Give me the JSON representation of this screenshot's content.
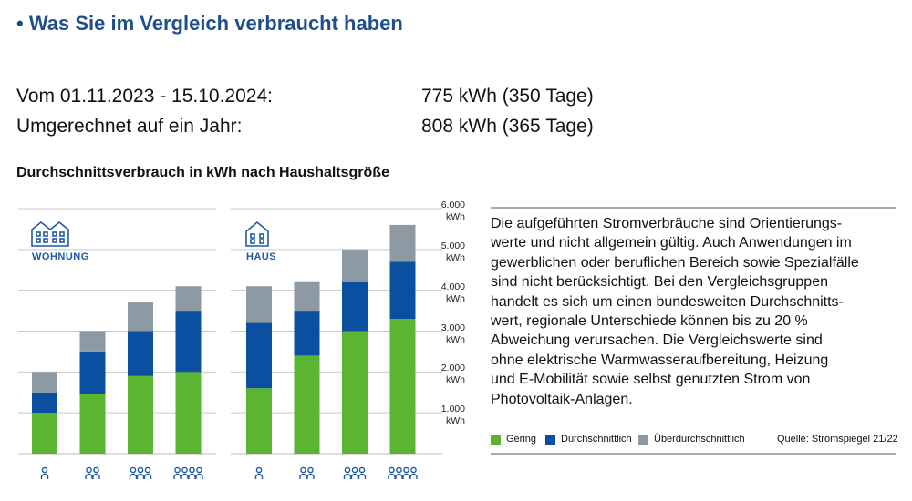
{
  "header": {
    "title": "Was Sie im Vergleich verbraucht haben"
  },
  "summary": {
    "rows": [
      [
        "Vom 01.11.2023 - 15.10.2024:",
        "775 kWh (350 Tage)"
      ],
      [
        "Umgerechnet auf ein Jahr:",
        "808 kWh (365 Tage)"
      ]
    ]
  },
  "section_title": "Durchschnittsverbrauch in kWh nach Haushaltsgröße",
  "chart_data": {
    "type": "bar",
    "stacked": true,
    "panels": [
      "WOHNUNG",
      "HAUS"
    ],
    "categories": [
      null,
      null,
      null,
      null,
      null,
      null,
      null,
      null
    ],
    "series": [
      {
        "name": "Gering",
        "color": "#5bb432",
        "values": [
          1000,
          1450,
          1900,
          2000,
          1600,
          2400,
          3000,
          3300
        ]
      },
      {
        "name": "Durchschnittlich",
        "color": "#0b4fa1",
        "values": [
          500,
          1050,
          1100,
          1500,
          1600,
          1100,
          1200,
          1400
        ]
      },
      {
        "name": "Überdurchschnittlich",
        "color": "#8d9aa4",
        "values": [
          500,
          500,
          700,
          600,
          900,
          700,
          800,
          900
        ]
      }
    ],
    "ylim": [
      0,
      6000
    ],
    "yticks": [
      {
        "value": 1000,
        "label": "1.000 kWh"
      },
      {
        "value": 2000,
        "label": "2.000 kWh"
      },
      {
        "value": 3000,
        "label": "3.000 kWh"
      },
      {
        "value": 4000,
        "label": "4.000 kWh"
      },
      {
        "value": 5000,
        "label": "5.000 kWh"
      },
      {
        "value": 6000,
        "label": "6.000 kWh"
      }
    ],
    "grid": true
  },
  "note": {
    "lines": [
      "Die aufgeführten Stromverbräuche sind Orientierungs-",
      "werte und nicht allgemein gültig. Auch Anwendungen im",
      "gewerblichen oder beruflichen Bereich sowie Spezialfälle",
      "sind nicht berücksichtigt. Bei den Vergleichsgruppen",
      "handelt es sich um einen bundesweiten Durchschnitts-",
      "wert, regionale Unterschiede können bis zu 20 %",
      "Abweichung verursachen. Die Vergleichswerte sind",
      "ohne elektrische Warmwasseraufbereitung, Heizung",
      "und E-Mobilität sowie selbst genutzten Strom von",
      "Photovoltaik-Anlagen."
    ]
  },
  "source": "Quelle: Stromspiegel 21/22"
}
